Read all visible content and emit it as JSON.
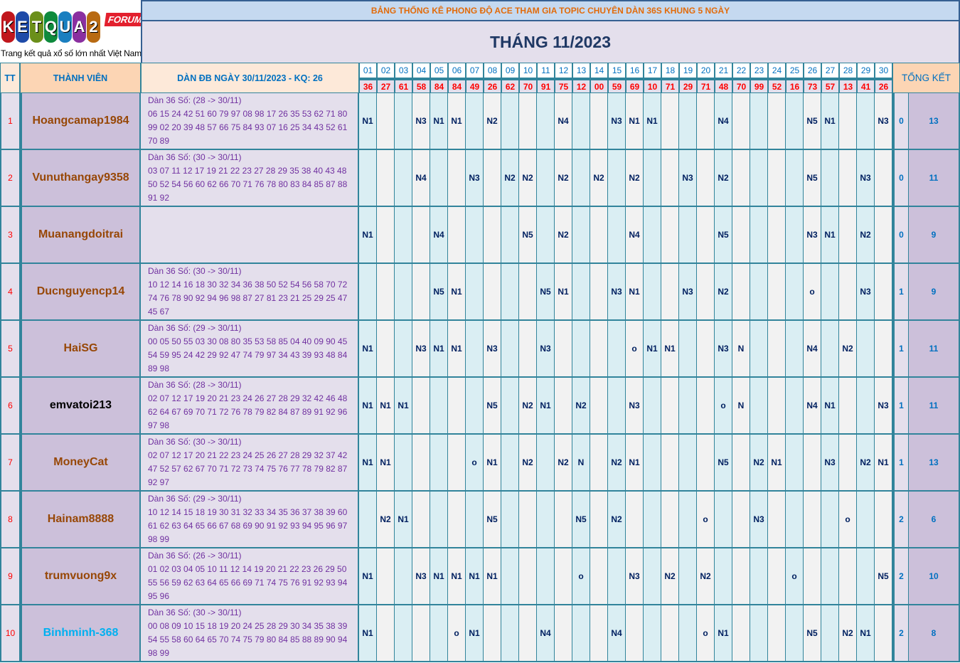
{
  "logo": {
    "letters": [
      "K",
      "E",
      "T",
      "Q",
      "U",
      "A",
      "2"
    ],
    "badge": "FORUM",
    "tagline": "Trang kết quả xổ số lớn nhất Việt Nam",
    "colors": [
      "#c0161c",
      "#1e4aa8",
      "#6b8f1a",
      "#0e8a3c",
      "#1a7fc0",
      "#8a2fa0",
      "#b86a12"
    ]
  },
  "title": "BẢNG THỐNG KÊ PHONG ĐỘ ACE THAM GIA TOPIC CHUYÊN DÀN 36S KHUNG 5 NGÀY",
  "month": "THÁNG 11/2023",
  "headers": {
    "tt": "TT",
    "member": "THÀNH VIÊN",
    "dan": "DÀN ĐB NGÀY 30/11/2023 - KQ: 26",
    "total": "TỔNG KẾT"
  },
  "days": [
    "01",
    "02",
    "03",
    "04",
    "05",
    "06",
    "07",
    "08",
    "09",
    "10",
    "11",
    "12",
    "13",
    "14",
    "15",
    "16",
    "17",
    "18",
    "19",
    "20",
    "21",
    "22",
    "23",
    "24",
    "25",
    "26",
    "27",
    "28",
    "29",
    "30"
  ],
  "results": [
    "36",
    "27",
    "61",
    "58",
    "84",
    "84",
    "49",
    "26",
    "62",
    "70",
    "91",
    "75",
    "12",
    "00",
    "59",
    "69",
    "10",
    "71",
    "29",
    "71",
    "48",
    "70",
    "99",
    "52",
    "16",
    "73",
    "57",
    "13",
    "41",
    "26"
  ],
  "colors": {
    "border": "#31849b",
    "title_text": "#e26b0a",
    "member_text": "#974706",
    "dan_text": "#7030a0",
    "result_text": "#ff0000",
    "day_text": "#0070c0"
  },
  "rows": [
    {
      "tt": "1",
      "name": "Hoangcamap1984",
      "name_color": "#974706",
      "dan_label": "Dàn 36 Số: (28 -> 30/11)",
      "dan_numbers": "06 15 24 42 51 60 79 97 08 98 17 26 35 53 62 71 80 99 02 20 39 48 57 66 75 84 93 07 16 25 34 43 52 61 70 89",
      "cells": [
        "N1",
        "",
        "",
        "N3",
        "N1",
        "N1",
        "",
        "N2",
        "",
        "",
        "",
        "N4",
        "",
        "",
        "N3",
        "N1",
        "N1",
        "",
        "",
        "",
        "N4",
        "",
        "",
        "",
        "",
        "N5",
        "N1",
        "",
        "",
        "N3"
      ],
      "zero": "0",
      "total": "13"
    },
    {
      "tt": "2",
      "name": "Vunuthangay9358",
      "name_color": "#974706",
      "dan_label": "Dàn 36 Số: (30 -> 30/11)",
      "dan_numbers": "03 07 11 12 17 19 21 22 23 27 28 29 35 38 40 43 48 50 52 54 56 60 62 66 70 71 76 78 80 83 84 85 87 88 91 92",
      "cells": [
        "",
        "",
        "",
        "N4",
        "",
        "",
        "N3",
        "",
        "N2",
        "N2",
        "",
        "N2",
        "",
        "N2",
        "",
        "N2",
        "",
        "",
        "N3",
        "",
        "N2",
        "",
        "",
        "",
        "",
        "N5",
        "",
        "",
        "N3",
        ""
      ],
      "zero": "0",
      "total": "11"
    },
    {
      "tt": "3",
      "name": "Muanangdoitrai",
      "name_color": "#974706",
      "dan_label": "",
      "dan_numbers": "",
      "cells": [
        "N1",
        "",
        "",
        "",
        "N4",
        "",
        "",
        "",
        "",
        "N5",
        "",
        "N2",
        "",
        "",
        "",
        "N4",
        "",
        "",
        "",
        "",
        "N5",
        "",
        "",
        "",
        "",
        "N3",
        "N1",
        "",
        "N2",
        ""
      ],
      "zero": "0",
      "total": "9"
    },
    {
      "tt": "4",
      "name": "Ducnguyencp14",
      "name_color": "#974706",
      "dan_label": "Dàn 36 Số: (30 -> 30/11)",
      "dan_numbers": "10 12 14 16 18 30 32 34 36 38 50 52 54 56 58 70 72 74 76 78 90 92 94 96 98 87 27 81 23 21 25 29 25 47 45 67",
      "cells": [
        "",
        "",
        "",
        "",
        "N5",
        "N1",
        "",
        "",
        "",
        "",
        "N5",
        "N1",
        "",
        "",
        "N3",
        "N1",
        "",
        "",
        "N3",
        "",
        "N2",
        "",
        "",
        "",
        "",
        "o",
        "",
        "",
        "N3",
        ""
      ],
      "zero": "1",
      "total": "9"
    },
    {
      "tt": "5",
      "name": "HaiSG",
      "name_color": "#974706",
      "dan_label": "Dàn 36 Số: (29 -> 30/11)",
      "dan_numbers": "00 05 50 55 03 30 08 80 35 53 58 85 04 40 09 90 45 54 59 95 24 42 29 92 47 74 79 97 34 43 39 93 48 84 89 98",
      "cells": [
        "N1",
        "",
        "",
        "N3",
        "N1",
        "N1",
        "",
        "N3",
        "",
        "",
        "N3",
        "",
        "",
        "",
        "",
        "o",
        "N1",
        "N1",
        "",
        "",
        "N3",
        "N",
        "",
        "",
        "",
        "N4",
        "",
        "N2",
        "",
        ""
      ],
      "zero": "1",
      "total": "11"
    },
    {
      "tt": "6",
      "name": "emvatoi213",
      "name_color": "#000000",
      "dan_label": "Dàn 36 Số: (28 -> 30/11)",
      "dan_numbers": "02 07 12 17 19 20 21 23 24 26 27 28 29 32 42 46 48 62 64 67 69 70 71 72 76 78 79 82 84 87 89 91 92 96 97 98",
      "cells": [
        "N1",
        "N1",
        "N1",
        "",
        "",
        "",
        "",
        "N5",
        "",
        "N2",
        "N1",
        "",
        "N2",
        "",
        "",
        "N3",
        "",
        "",
        "",
        "",
        "o",
        "N",
        "",
        "",
        "",
        "N4",
        "N1",
        "",
        "",
        "N3"
      ],
      "zero": "1",
      "total": "11"
    },
    {
      "tt": "7",
      "name": "MoneyCat",
      "name_color": "#974706",
      "dan_label": "Dàn 36 Số: (30 -> 30/11)",
      "dan_numbers": "02 07 12 17 20 21 22 23 24 25 26 27 28 29 32 37 42 47 52 57 62 67 70 71 72 73 74 75 76 77 78 79 82 87 92 97",
      "cells": [
        "N1",
        "N1",
        "",
        "",
        "",
        "",
        "o",
        "N1",
        "",
        "N2",
        "",
        "N2",
        "N",
        "",
        "N2",
        "N1",
        "",
        "",
        "",
        "",
        "N5",
        "",
        "N2",
        "N1",
        "",
        "",
        "N3",
        "",
        "N2",
        "N1"
      ],
      "zero": "1",
      "total": "13"
    },
    {
      "tt": "8",
      "name": "Hainam8888",
      "name_color": "#974706",
      "dan_label": "Dàn 36 Số: (29 -> 30/11)",
      "dan_numbers": "10 12 14 15 18 19 30 31 32 33 34 35 36 37 38 39 60 61 62 63 64 65 66 67 68 69 90 91 92 93 94 95 96 97 98 99",
      "cells": [
        "",
        "N2",
        "N1",
        "",
        "",
        "",
        "",
        "N5",
        "",
        "",
        "",
        "",
        "N5",
        "",
        "N2",
        "",
        "",
        "",
        "",
        "o",
        "",
        "",
        "N3",
        "",
        "",
        "",
        "",
        "o",
        "",
        ""
      ],
      "zero": "2",
      "total": "6"
    },
    {
      "tt": "9",
      "name": "trumvuong9x",
      "name_color": "#974706",
      "dan_label": "Dàn 36 Số: (26 -> 30/11)",
      "dan_numbers": "01 02 03 04 05 10 11 12 14 19 20 21 22 23 26 29 50 55 56 59 62 63 64 65 66 69 71 74 75 76 91 92 93 94 95 96",
      "cells": [
        "N1",
        "",
        "",
        "N3",
        "N1",
        "N1",
        "N1",
        "N1",
        "",
        "",
        "",
        "",
        "o",
        "",
        "",
        "N3",
        "",
        "N2",
        "",
        "N2",
        "",
        "",
        "",
        "",
        "o",
        "",
        "",
        "",
        "",
        "N5"
      ],
      "zero": "2",
      "total": "10"
    },
    {
      "tt": "10",
      "name": "Binhminh-368",
      "name_color": "#00b0f0",
      "dan_label": "Dàn 36 Số: (30 -> 30/11)",
      "dan_numbers": "00 08 09 10 15 18 19 20 24 25 28 29 30 34 35 38 39 54 55 58 60 64 65 70 74 75 79 80 84 85 88 89 90 94 98 99",
      "cells": [
        "N1",
        "",
        "",
        "",
        "",
        "o",
        "N1",
        "",
        "",
        "",
        "N4",
        "",
        "",
        "",
        "N4",
        "",
        "",
        "",
        "",
        "o",
        "N1",
        "",
        "",
        "",
        "",
        "N5",
        "",
        "N2",
        "N1",
        ""
      ],
      "zero": "2",
      "total": "8"
    }
  ]
}
